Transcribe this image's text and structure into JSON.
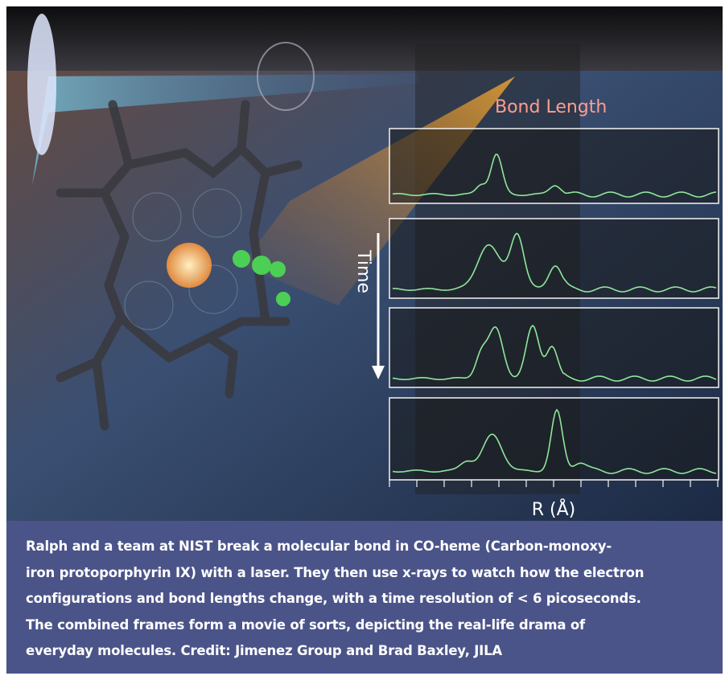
{
  "figure": {
    "labels": {
      "bond_length": "Bond Length",
      "time": "Time",
      "r_axis": "R (Å)"
    },
    "caption": [
      "Ralph and a team at NIST break a molecular bond in CO-heme (Carbon-monoxy-",
      "iron protoporphyrin IX) with a laser. They then use x-rays to watch how the electron",
      "configurations and bond lengths change, with a time resolution of < 6 picoseconds.",
      "The combined frames form a movie of sorts, depicting the real-life drama of",
      "everyday molecules. Credit: Jimenez Group and Brad Baxley, JILA"
    ]
  }
}
